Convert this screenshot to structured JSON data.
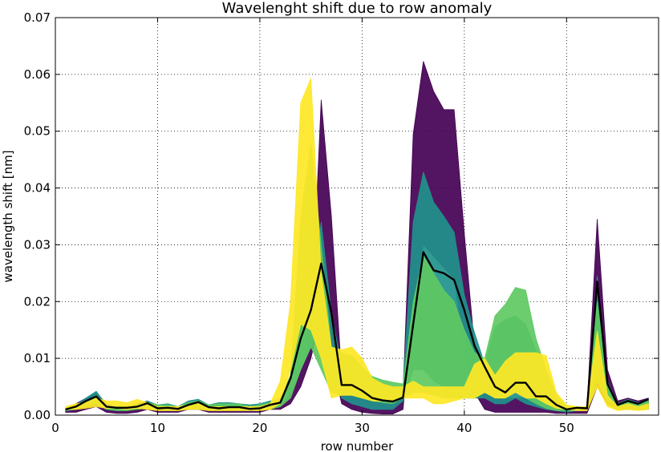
{
  "chart_data": {
    "type": "line",
    "title": "Wavelenght shift due to row anomaly",
    "xlabel": "row number",
    "ylabel": "wavelength shift [nm]",
    "xlim": [
      0,
      59
    ],
    "ylim": [
      0,
      0.07
    ],
    "xticks": [
      0,
      10,
      20,
      30,
      40,
      50
    ],
    "yticks": [
      0.0,
      0.01,
      0.02,
      0.03,
      0.04,
      0.05,
      0.06,
      0.07
    ],
    "xtick_labels": [
      "0",
      "10",
      "20",
      "30",
      "40",
      "50"
    ],
    "ytick_labels": [
      "0.00",
      "0.01",
      "0.02",
      "0.03",
      "0.04",
      "0.05",
      "0.06",
      "0.07"
    ],
    "grid": true,
    "colormap": "viridis",
    "series": [
      {
        "role": "mean",
        "color": "#000000",
        "x": [
          1,
          2,
          3,
          4,
          5,
          6,
          7,
          8,
          9,
          10,
          11,
          12,
          13,
          14,
          15,
          16,
          17,
          18,
          19,
          20,
          21,
          22,
          23,
          24,
          25,
          26,
          27,
          28,
          29,
          30,
          31,
          32,
          33,
          34,
          35,
          36,
          37,
          38,
          39,
          40,
          41,
          42,
          43,
          44,
          45,
          46,
          47,
          48,
          49,
          50,
          51,
          52,
          53,
          54,
          55,
          56,
          57,
          58
        ],
        "y": [
          0.001,
          0.0015,
          0.0025,
          0.0033,
          0.0015,
          0.0013,
          0.0013,
          0.0015,
          0.0021,
          0.0012,
          0.0013,
          0.0011,
          0.0018,
          0.0023,
          0.0014,
          0.0012,
          0.0014,
          0.0014,
          0.0011,
          0.0012,
          0.0018,
          0.0022,
          0.0065,
          0.0135,
          0.0185,
          0.0267,
          0.018,
          0.0053,
          0.0053,
          0.0043,
          0.003,
          0.0026,
          0.0024,
          0.0031,
          0.016,
          0.0287,
          0.0255,
          0.025,
          0.0238,
          0.0185,
          0.0122,
          0.0085,
          0.005,
          0.004,
          0.0057,
          0.0057,
          0.0033,
          0.0033,
          0.0018,
          0.001,
          0.0013,
          0.0012,
          0.0235,
          0.0055,
          0.0018,
          0.0025,
          0.002,
          0.0028
        ]
      }
    ],
    "ensemble_envelopes": [
      {
        "color": "#440154",
        "x": [
          1,
          2,
          3,
          4,
          5,
          6,
          7,
          8,
          9,
          10,
          11,
          12,
          13,
          14,
          15,
          16,
          17,
          18,
          19,
          20,
          21,
          22,
          23,
          24,
          25,
          26,
          27,
          28,
          29,
          30,
          31,
          32,
          33,
          34,
          35,
          36,
          37,
          38,
          39,
          40,
          41,
          42,
          43,
          44,
          45,
          46,
          47,
          48,
          49,
          50,
          51,
          52,
          53,
          54,
          55,
          56,
          57,
          58
        ],
        "upper": [
          0.001,
          0.002,
          0.003,
          0.004,
          0.002,
          0.0015,
          0.0015,
          0.002,
          0.0025,
          0.0015,
          0.0015,
          0.0012,
          0.002,
          0.0025,
          0.0015,
          0.0015,
          0.0015,
          0.0015,
          0.0012,
          0.0015,
          0.002,
          0.0025,
          0.004,
          0.008,
          0.015,
          0.0555,
          0.035,
          0.007,
          0.005,
          0.005,
          0.0045,
          0.0045,
          0.004,
          0.004,
          0.0495,
          0.0623,
          0.057,
          0.0538,
          0.0538,
          0.032,
          0.012,
          0.005,
          0.003,
          0.003,
          0.003,
          0.003,
          0.003,
          0.002,
          0.0015,
          0.001,
          0.0015,
          0.0015,
          0.0345,
          0.008,
          0.0025,
          0.003,
          0.0025,
          0.003
        ],
        "lower": [
          0.0005,
          0.0005,
          0.001,
          0.0015,
          0.0005,
          0.0003,
          0.0003,
          0.0005,
          0.001,
          0.0005,
          0.0005,
          0.0005,
          0.001,
          0.001,
          0.0005,
          0.0005,
          0.0005,
          0.0005,
          0.0005,
          0.0005,
          0.001,
          0.001,
          0.002,
          0.005,
          0.01,
          0.018,
          0.01,
          0.002,
          0.001,
          0.0005,
          0.0003,
          0.0002,
          0.0002,
          0.001,
          0.02,
          0.03,
          0.028,
          0.026,
          0.024,
          0.012,
          0.004,
          0.001,
          0.0005,
          0.0005,
          0.0005,
          0.0005,
          0.0005,
          0.0005,
          0.0003,
          0.0003,
          0.0003,
          0.0003,
          0.005,
          0.002,
          0.001,
          0.001,
          0.001,
          0.001
        ]
      },
      {
        "color": "#21918c",
        "x": [
          1,
          2,
          3,
          4,
          5,
          6,
          7,
          8,
          9,
          10,
          11,
          12,
          13,
          14,
          15,
          16,
          17,
          18,
          19,
          20,
          21,
          22,
          23,
          24,
          25,
          26,
          27,
          28,
          29,
          30,
          31,
          32,
          33,
          34,
          35,
          36,
          37,
          38,
          39,
          40,
          41,
          42,
          43,
          44,
          45,
          46,
          47,
          48,
          49,
          50,
          51,
          52,
          53,
          54,
          55,
          56,
          57,
          58
        ],
        "upper": [
          0.001,
          0.0018,
          0.003,
          0.0042,
          0.0018,
          0.0015,
          0.0015,
          0.0018,
          0.0025,
          0.0018,
          0.002,
          0.0015,
          0.0025,
          0.0028,
          0.0018,
          0.0022,
          0.0022,
          0.002,
          0.0018,
          0.002,
          0.0025,
          0.0028,
          0.006,
          0.016,
          0.02,
          0.034,
          0.018,
          0.009,
          0.0085,
          0.0075,
          0.006,
          0.0055,
          0.0048,
          0.005,
          0.034,
          0.0428,
          0.0375,
          0.035,
          0.0322,
          0.0212,
          0.0145,
          0.009,
          0.0155,
          0.0168,
          0.0175,
          0.016,
          0.0115,
          0.0065,
          0.0035,
          0.0015,
          0.0015,
          0.0015,
          0.0245,
          0.006,
          0.002,
          0.0028,
          0.0022,
          0.0028
        ],
        "lower": [
          0.0008,
          0.001,
          0.0018,
          0.0025,
          0.001,
          0.0008,
          0.0008,
          0.001,
          0.0015,
          0.001,
          0.001,
          0.0008,
          0.0012,
          0.0015,
          0.001,
          0.001,
          0.001,
          0.001,
          0.0008,
          0.001,
          0.0015,
          0.0015,
          0.004,
          0.008,
          0.012,
          0.016,
          0.008,
          0.003,
          0.002,
          0.0015,
          0.001,
          0.001,
          0.001,
          0.0025,
          0.008,
          0.008,
          0.006,
          0.005,
          0.004,
          0.003,
          0.003,
          0.003,
          0.002,
          0.002,
          0.003,
          0.002,
          0.0015,
          0.001,
          0.0008,
          0.0005,
          0.0008,
          0.0008,
          0.01,
          0.003,
          0.0012,
          0.0015,
          0.0012,
          0.0015
        ]
      },
      {
        "color": "#5ec962",
        "x": [
          1,
          2,
          3,
          4,
          5,
          6,
          7,
          8,
          9,
          10,
          11,
          12,
          13,
          14,
          15,
          16,
          17,
          18,
          19,
          20,
          21,
          22,
          23,
          24,
          25,
          26,
          27,
          28,
          29,
          30,
          31,
          32,
          33,
          34,
          35,
          36,
          37,
          38,
          39,
          40,
          41,
          42,
          43,
          44,
          45,
          46,
          47,
          48,
          49,
          50,
          51,
          52,
          53,
          54,
          55,
          56,
          57,
          58
        ],
        "upper": [
          0.0012,
          0.0018,
          0.0025,
          0.0035,
          0.0018,
          0.0016,
          0.0016,
          0.0018,
          0.0022,
          0.0018,
          0.0018,
          0.0015,
          0.0022,
          0.0025,
          0.0018,
          0.002,
          0.002,
          0.002,
          0.0015,
          0.0018,
          0.0022,
          0.003,
          0.007,
          0.035,
          0.048,
          0.03,
          0.012,
          0.011,
          0.0105,
          0.0085,
          0.0068,
          0.0062,
          0.0058,
          0.0055,
          0.02,
          0.028,
          0.025,
          0.022,
          0.02,
          0.015,
          0.011,
          0.01,
          0.0175,
          0.0195,
          0.0225,
          0.022,
          0.0135,
          0.008,
          0.0035,
          0.0015,
          0.0015,
          0.0015,
          0.02,
          0.005,
          0.0018,
          0.0025,
          0.002,
          0.0025
        ],
        "lower": [
          0.0008,
          0.001,
          0.0015,
          0.002,
          0.001,
          0.0008,
          0.0008,
          0.001,
          0.0012,
          0.0008,
          0.0008,
          0.0008,
          0.001,
          0.0012,
          0.0008,
          0.0008,
          0.0008,
          0.0008,
          0.0008,
          0.0008,
          0.001,
          0.0015,
          0.003,
          0.008,
          0.012,
          0.008,
          0.004,
          0.0035,
          0.0035,
          0.003,
          0.0025,
          0.0022,
          0.002,
          0.003,
          0.004,
          0.004,
          0.0035,
          0.003,
          0.003,
          0.003,
          0.003,
          0.004,
          0.003,
          0.003,
          0.004,
          0.003,
          0.002,
          0.0012,
          0.0008,
          0.0008,
          0.0008,
          0.0008,
          0.006,
          0.0025,
          0.001,
          0.0012,
          0.001,
          0.0012
        ]
      },
      {
        "color": "#fde725",
        "x": [
          1,
          2,
          3,
          4,
          5,
          6,
          7,
          8,
          9,
          10,
          11,
          12,
          13,
          14,
          15,
          16,
          17,
          18,
          19,
          20,
          21,
          22,
          23,
          24,
          25,
          26,
          27,
          28,
          29,
          30,
          31,
          32,
          33,
          34,
          35,
          36,
          37,
          38,
          39,
          40,
          41,
          42,
          43,
          44,
          45,
          46,
          47,
          48,
          49,
          50,
          51,
          52,
          53,
          54,
          55,
          56,
          57,
          58
        ],
        "upper": [
          0.0015,
          0.002,
          0.0022,
          0.003,
          0.0025,
          0.0025,
          0.0022,
          0.0028,
          0.0022,
          0.0015,
          0.0015,
          0.0015,
          0.0018,
          0.002,
          0.0015,
          0.0015,
          0.0015,
          0.0015,
          0.0015,
          0.0015,
          0.002,
          0.006,
          0.02,
          0.055,
          0.0593,
          0.025,
          0.012,
          0.0115,
          0.012,
          0.01,
          0.0065,
          0.0055,
          0.005,
          0.005,
          0.006,
          0.005,
          0.005,
          0.005,
          0.005,
          0.005,
          0.009,
          0.01,
          0.007,
          0.0095,
          0.011,
          0.011,
          0.011,
          0.0105,
          0.004,
          0.0018,
          0.0015,
          0.0015,
          0.0148,
          0.0035,
          0.0015,
          0.002,
          0.0015,
          0.002
        ],
        "lower": [
          0.001,
          0.001,
          0.0012,
          0.0015,
          0.0012,
          0.0012,
          0.001,
          0.0012,
          0.001,
          0.0008,
          0.0008,
          0.0008,
          0.001,
          0.001,
          0.0008,
          0.0008,
          0.0008,
          0.0008,
          0.0008,
          0.0008,
          0.001,
          0.002,
          0.008,
          0.016,
          0.015,
          0.01,
          0.003,
          0.0035,
          0.0035,
          0.003,
          0.0025,
          0.0025,
          0.0025,
          0.003,
          0.003,
          0.003,
          0.002,
          0.002,
          0.0025,
          0.003,
          0.003,
          0.004,
          0.003,
          0.003,
          0.004,
          0.003,
          0.003,
          0.002,
          0.0012,
          0.001,
          0.0008,
          0.0008,
          0.005,
          0.0015,
          0.0008,
          0.001,
          0.0008,
          0.001
        ]
      }
    ]
  }
}
